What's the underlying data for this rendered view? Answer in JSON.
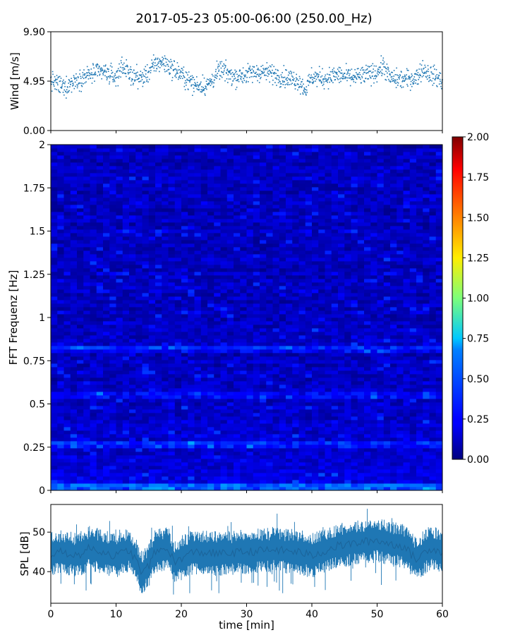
{
  "title": "2017-05-23 05:00-06:00 (250.00_Hz)",
  "chart_data": [
    {
      "panel": "wind",
      "type": "scatter",
      "ylabel": "Wind [m/s]",
      "yticks": [
        "0.00",
        "4.95",
        "9.90"
      ],
      "ylim": [
        0,
        9.9
      ],
      "xlim": [
        0,
        60
      ],
      "marker_color": "#1f77b4",
      "series": [
        {
          "x": [
            0,
            2,
            4,
            6,
            8,
            10,
            11,
            12,
            14,
            16,
            17,
            18,
            20,
            22,
            24,
            26,
            28,
            30,
            32,
            34,
            36,
            38,
            39,
            40,
            42,
            44,
            46,
            48,
            50,
            51,
            52,
            54,
            56,
            57,
            58,
            60
          ],
          "y": [
            5.0,
            4.3,
            5.1,
            5.6,
            5.9,
            5.3,
            6.6,
            5.6,
            5.2,
            6.6,
            6.9,
            6.5,
            5.6,
            4.6,
            4.5,
            6.1,
            5.4,
            5.6,
            5.9,
            5.7,
            5.3,
            5.0,
            4.1,
            5.4,
            5.2,
            5.6,
            5.3,
            5.5,
            5.9,
            6.5,
            5.2,
            5.1,
            5.3,
            6.2,
            5.7,
            5.0
          ]
        }
      ]
    },
    {
      "panel": "spectrogram",
      "type": "heatmap",
      "ylabel": "FFT Frequenz [Hz]",
      "yticks": [
        "0",
        "0.25",
        "0.5",
        "0.75",
        "1",
        "1.25",
        "1.5",
        "1.75",
        "2"
      ],
      "ylim": [
        0,
        2
      ],
      "xlim": [
        0,
        60
      ],
      "colormap": "jet",
      "colorbar_range": [
        0,
        2
      ],
      "colorbar_ticks": [
        "0.00",
        "0.25",
        "0.50",
        "0.75",
        "1.00",
        "1.25",
        "1.50",
        "1.75",
        "2.00"
      ],
      "bands": [
        {
          "freq": 0.82,
          "level": 0.85
        },
        {
          "freq": 0.55,
          "level": 0.7
        },
        {
          "freq": 0.27,
          "level": 0.8
        },
        {
          "freq": 0.02,
          "level": 1.3
        }
      ]
    },
    {
      "panel": "spl",
      "type": "area",
      "ylabel": "SPL [dB]",
      "xlabel": "time [min]",
      "yticks": [
        "40",
        "50"
      ],
      "xticks": [
        "0",
        "10",
        "20",
        "30",
        "40",
        "50",
        "60"
      ],
      "ylim": [
        32,
        57
      ],
      "xlim": [
        0,
        60
      ],
      "line_color": "#1f77b4",
      "series": [
        {
          "x": [
            0,
            2,
            4,
            6,
            8,
            10,
            12,
            13,
            14,
            15,
            16,
            18,
            19,
            20,
            22,
            26,
            30,
            34,
            38,
            40,
            44,
            46,
            48,
            50,
            52,
            54,
            56,
            58,
            60
          ],
          "center": [
            44.5,
            45,
            44,
            46,
            45,
            44,
            45.5,
            43,
            39.5,
            41.5,
            45,
            46,
            42,
            43.5,
            45,
            44.5,
            45,
            45.5,
            45,
            44,
            46.5,
            47,
            47.5,
            48,
            47,
            46.5,
            43,
            46,
            45
          ]
        }
      ]
    }
  ]
}
